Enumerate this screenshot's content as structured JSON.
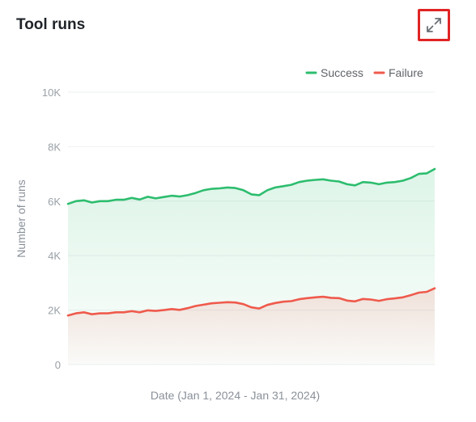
{
  "card": {
    "title": "Tool runs"
  },
  "icons": {
    "expand": "expand-icon"
  },
  "colors": {
    "success": "#2dbd6e",
    "failure": "#ef5a4c",
    "grid": "#eef0f2",
    "highlight": "#e02424"
  },
  "chart_data": {
    "type": "area",
    "xlabel": "Date (Jan 1, 2024 - Jan 31, 2024)",
    "ylabel": "Number of runs",
    "ylim": [
      0,
      10000
    ],
    "yticks": [
      0,
      2000,
      4000,
      6000,
      8000,
      10000
    ],
    "yticklabels": [
      "0",
      "2K",
      "4K",
      "6K",
      "8K",
      "10K"
    ],
    "grid": true,
    "legend": "top-right",
    "series": [
      {
        "name": "Success",
        "color": "#2dbd6e",
        "values": [
          5900,
          6000,
          6030,
          5950,
          6000,
          6000,
          6050,
          6050,
          6120,
          6060,
          6160,
          6100,
          6150,
          6200,
          6170,
          6220,
          6300,
          6400,
          6450,
          6470,
          6500,
          6480,
          6400,
          6250,
          6220,
          6400,
          6500,
          6550,
          6600,
          6700,
          6750,
          6780,
          6800,
          6750,
          6720,
          6620,
          6580,
          6700,
          6680,
          6620,
          6680,
          6700,
          6750,
          6850,
          7000,
          7020,
          7180
        ]
      },
      {
        "name": "Failure",
        "color": "#ef5a4c",
        "values": [
          1800,
          1880,
          1920,
          1850,
          1880,
          1880,
          1920,
          1920,
          1960,
          1920,
          1990,
          1970,
          2000,
          2040,
          2010,
          2070,
          2150,
          2200,
          2250,
          2270,
          2290,
          2280,
          2220,
          2100,
          2060,
          2190,
          2260,
          2310,
          2330,
          2400,
          2440,
          2470,
          2490,
          2450,
          2440,
          2350,
          2320,
          2410,
          2390,
          2340,
          2400,
          2430,
          2470,
          2550,
          2640,
          2670,
          2800
        ]
      }
    ]
  }
}
